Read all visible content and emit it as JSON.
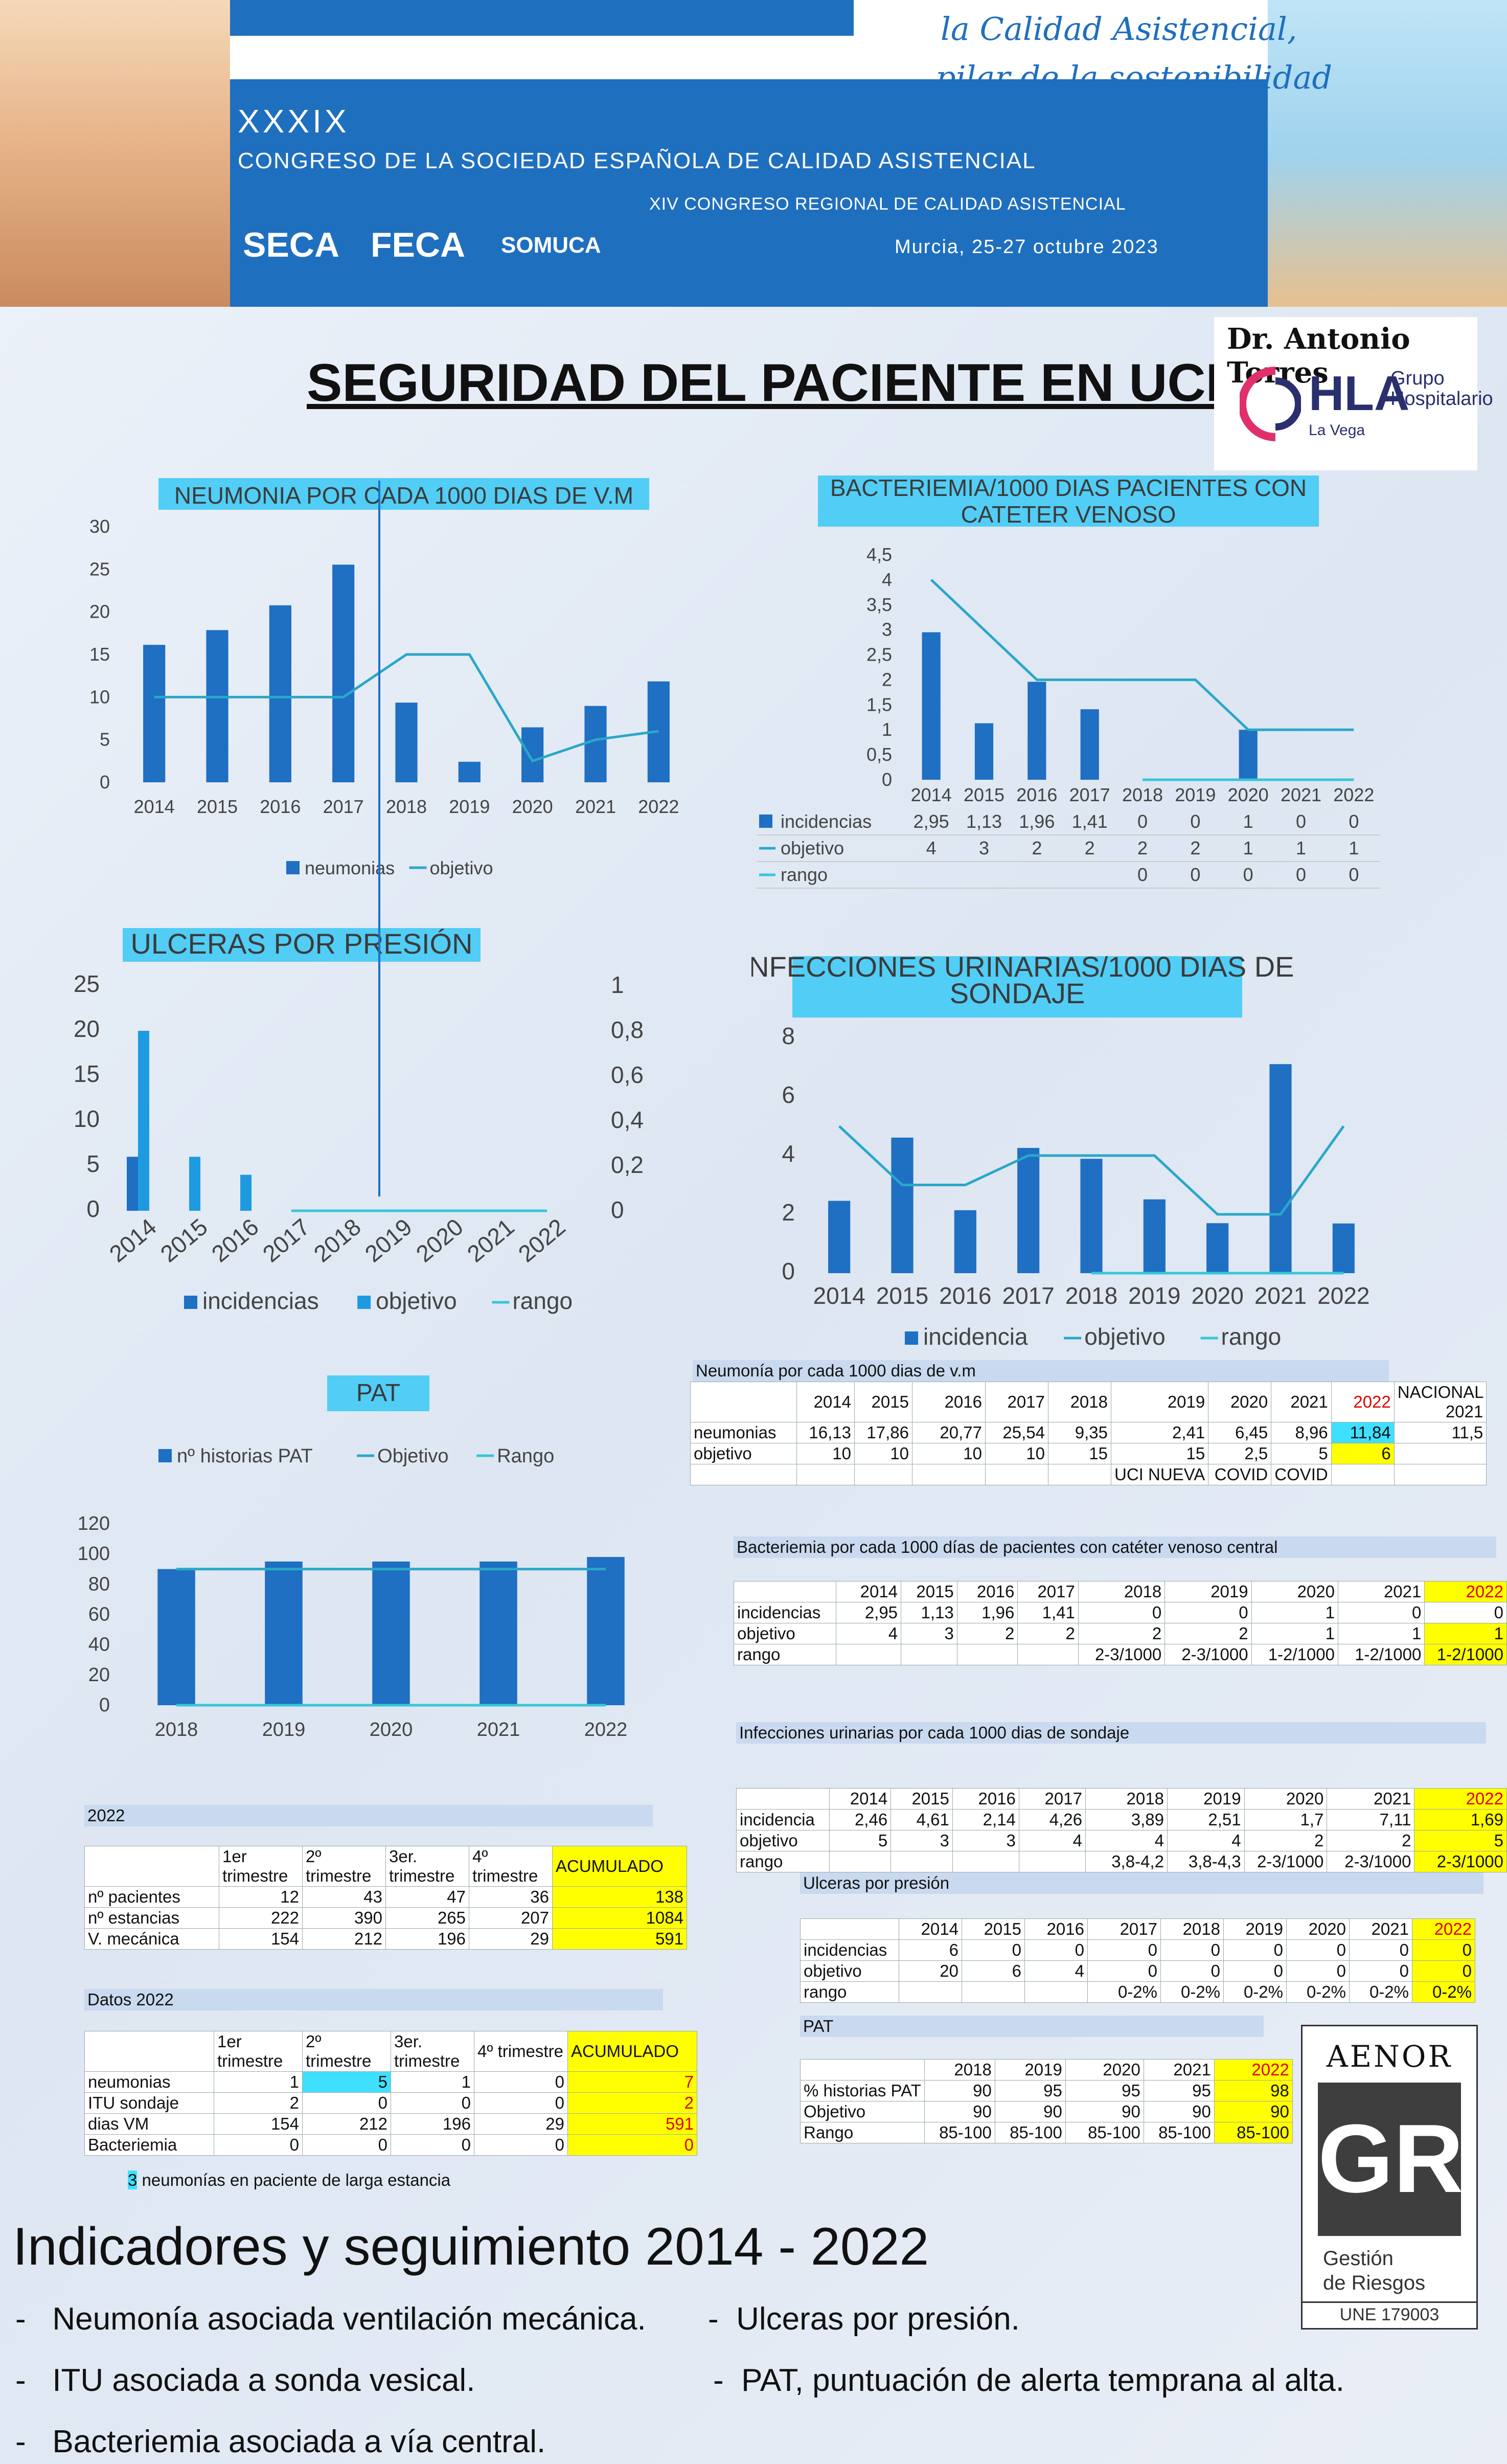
{
  "banner": {
    "number": "XXXIX",
    "congreso": "CONGRESO DE LA SOCIEDAD ESPAÑOLA DE CALIDAD ASISTENCIAL",
    "regional": "XIV CONGRESO REGIONAL DE CALIDAD ASISTENCIAL",
    "place_date": "Murcia, 25-27 octubre 2023",
    "tagline_1": "la Calidad Asistencial,",
    "tagline_2": "pilar de la sostenibilidad",
    "logos": [
      "SECA",
      "FECA",
      "SOMUCA"
    ]
  },
  "title": "SEGURIDAD DEL PACIENTE EN UCI",
  "brand": {
    "doctor": "Dr. Antonio Torres",
    "hla": "HLA",
    "grupo": "Grupo Hospitalario",
    "sub": "La Vega"
  },
  "chart_data": [
    {
      "id": "neumonia",
      "type": "bar",
      "title": "NEUMONIA POR CADA 1000 DIAS DE V.M",
      "categories": [
        "2014",
        "2015",
        "2016",
        "2017",
        "2018",
        "2019",
        "2020",
        "2021",
        "2022"
      ],
      "series": [
        {
          "name": "neumonias",
          "kind": "bar",
          "values": [
            16.13,
            17.86,
            20.77,
            25.54,
            9.35,
            2.41,
            6.45,
            8.96,
            11.84
          ]
        },
        {
          "name": "objetivo",
          "kind": "line",
          "values": [
            10,
            10,
            10,
            10,
            15,
            15,
            2.5,
            5,
            6
          ]
        }
      ],
      "yticks": [
        "0",
        "5",
        "10",
        "15",
        "20",
        "25",
        "30"
      ],
      "ylim": [
        0,
        30
      ],
      "legend": "bottom"
    },
    {
      "id": "bacteriemia",
      "type": "bar",
      "title": "BACTERIEMIA/1000 DIAS PACIENTES CON CATETER VENOSO",
      "categories": [
        "2014",
        "2015",
        "2016",
        "2017",
        "2018",
        "2019",
        "2020",
        "2021",
        "2022"
      ],
      "series": [
        {
          "name": "incidencias",
          "kind": "bar",
          "values": [
            2.95,
            1.13,
            1.96,
            1.41,
            0,
            0,
            1,
            0,
            0
          ],
          "labels": [
            "2,95",
            "1,13",
            "1,96",
            "1,41",
            "0",
            "0",
            "1",
            "0",
            "0"
          ]
        },
        {
          "name": "objetivo",
          "kind": "line",
          "values": [
            4,
            3,
            2,
            2,
            2,
            2,
            1,
            1,
            1
          ],
          "labels": [
            "4",
            "3",
            "2",
            "2",
            "2",
            "2",
            "1",
            "1",
            "1"
          ]
        },
        {
          "name": "rango",
          "kind": "line",
          "values": [
            null,
            null,
            null,
            null,
            0,
            0,
            0,
            0,
            0
          ],
          "labels": [
            "",
            "",
            "",
            "",
            "0",
            "0",
            "0",
            "0",
            "0"
          ]
        }
      ],
      "yticks": [
        "0",
        "0,5",
        "1",
        "1,5",
        "2",
        "2,5",
        "3",
        "3,5",
        "4",
        "4,5"
      ],
      "ylim": [
        0,
        4.5
      ],
      "legend": "data-table"
    },
    {
      "id": "ulceras",
      "type": "bar",
      "title": "ULCERAS POR PRESIÓN",
      "categories": [
        "2014",
        "2015",
        "2016",
        "2017",
        "2018",
        "2019",
        "2020",
        "2021",
        "2022"
      ],
      "series": [
        {
          "name": "incidencias",
          "kind": "bar",
          "values": [
            6,
            0,
            0,
            0,
            0,
            0,
            0,
            0,
            0
          ]
        },
        {
          "name": "objetivo",
          "kind": "bar",
          "values": [
            20,
            6,
            4,
            0,
            0,
            0,
            0,
            0,
            0
          ]
        },
        {
          "name": "rango",
          "kind": "line",
          "axis": "right",
          "values": [
            null,
            null,
            null,
            0,
            0,
            0,
            0,
            0,
            0
          ]
        }
      ],
      "yticks": [
        "0",
        "5",
        "10",
        "15",
        "20",
        "25"
      ],
      "ylim": [
        0,
        25
      ],
      "y2ticks": [
        "0",
        "0,2",
        "0,4",
        "0,6",
        "0,8",
        "1"
      ],
      "y2lim": [
        0,
        1
      ],
      "legend": "bottom"
    },
    {
      "id": "itu",
      "type": "bar",
      "title": "INFECCIONES URINARIAS/1000 DIAS DE SONDAJE",
      "categories": [
        "2014",
        "2015",
        "2016",
        "2017",
        "2018",
        "2019",
        "2020",
        "2021",
        "2022"
      ],
      "series": [
        {
          "name": "incidencia",
          "kind": "bar",
          "values": [
            2.46,
            4.61,
            2.14,
            4.26,
            3.89,
            2.51,
            1.7,
            7.11,
            1.69
          ]
        },
        {
          "name": "objetivo",
          "kind": "line",
          "values": [
            5,
            3,
            3,
            4,
            4,
            4,
            2,
            2,
            5
          ]
        },
        {
          "name": "rango",
          "kind": "line",
          "values": [
            null,
            null,
            null,
            null,
            0,
            0,
            0,
            0,
            0
          ]
        }
      ],
      "yticks": [
        "0",
        "2",
        "4",
        "6",
        "8"
      ],
      "ylim": [
        0,
        8
      ],
      "legend": "bottom"
    },
    {
      "id": "pat",
      "type": "bar",
      "title": "PAT",
      "categories": [
        "2018",
        "2019",
        "2020",
        "2021",
        "2022"
      ],
      "series": [
        {
          "name": "nº historias PAT",
          "kind": "bar",
          "values": [
            90,
            95,
            95,
            95,
            98
          ]
        },
        {
          "name": "Objetivo",
          "kind": "line",
          "values": [
            90,
            90,
            90,
            90,
            90
          ]
        },
        {
          "name": "Rango",
          "kind": "line",
          "values": [
            0,
            0,
            0,
            0,
            0
          ]
        }
      ],
      "yticks": [
        "0",
        "20",
        "40",
        "60",
        "80",
        "100",
        "120"
      ],
      "ylim": [
        0,
        120
      ],
      "legend": "top"
    }
  ],
  "tables": {
    "neumonia": {
      "caption": "Neumonía por cada 1000 dias de v.m",
      "header": [
        "",
        "2014",
        "2015",
        "2016",
        "2017",
        "2018",
        "2019",
        "2020",
        "2021",
        "2022",
        "NACIONAL 2021"
      ],
      "rows": [
        [
          "neumonias",
          "16,13",
          "17,86",
          "20,77",
          "25,54",
          "9,35",
          "2,41",
          "6,45",
          "8,96",
          "11,84",
          "11,5"
        ],
        [
          "objetivo",
          "10",
          "10",
          "10",
          "10",
          "15",
          "15",
          "2,5",
          "5",
          "6",
          ""
        ],
        [
          "",
          "",
          "",
          "",
          "",
          "",
          "UCI NUEVA",
          "COVID",
          "COVID",
          "",
          ""
        ]
      ]
    },
    "bacteriemia": {
      "caption": "Bacteriemia por cada 1000 días de pacientes con catéter venoso central",
      "header": [
        "",
        "2014",
        "2015",
        "2016",
        "2017",
        "2018",
        "2019",
        "2020",
        "2021",
        "2022"
      ],
      "rows": [
        [
          "incidencias",
          "2,95",
          "1,13",
          "1,96",
          "1,41",
          "0",
          "0",
          "1",
          "0",
          "0"
        ],
        [
          "objetivo",
          "4",
          "3",
          "2",
          "2",
          "2",
          "2",
          "1",
          "1",
          "1"
        ],
        [
          "rango",
          "",
          "",
          "",
          "",
          "2-3/1000",
          "2-3/1000",
          "1-2/1000",
          "1-2/1000",
          "1-2/1000"
        ]
      ]
    },
    "itu": {
      "caption": "Infecciones urinarias por cada 1000 dias de sondaje",
      "header": [
        "",
        "2014",
        "2015",
        "2016",
        "2017",
        "2018",
        "2019",
        "2020",
        "2021",
        "2022"
      ],
      "rows": [
        [
          "incidencia",
          "2,46",
          "4,61",
          "2,14",
          "4,26",
          "3,89",
          "2,51",
          "1,7",
          "7,11",
          "1,69"
        ],
        [
          "objetivo",
          "5",
          "3",
          "3",
          "4",
          "4",
          "4",
          "2",
          "2",
          "5"
        ],
        [
          "rango",
          "",
          "",
          "",
          "",
          "3,8-4,2",
          "3,8-4,3",
          "2-3/1000",
          "2-3/1000",
          "2-3/1000"
        ]
      ]
    },
    "ulceras": {
      "caption": "Ulceras por presión",
      "header": [
        "",
        "2014",
        "2015",
        "2016",
        "2017",
        "2018",
        "2019",
        "2020",
        "2021",
        "2022"
      ],
      "rows": [
        [
          "incidencias",
          "6",
          "0",
          "0",
          "0",
          "0",
          "0",
          "0",
          "0",
          "0"
        ],
        [
          "objetivo",
          "20",
          "6",
          "4",
          "0",
          "0",
          "0",
          "0",
          "0",
          "0"
        ],
        [
          "rango",
          "",
          "",
          "",
          "0-2%",
          "0-2%",
          "0-2%",
          "0-2%",
          "0-2%",
          "0-2%"
        ]
      ]
    },
    "pat": {
      "caption": "PAT",
      "header": [
        "",
        "2018",
        "2019",
        "2020",
        "2021",
        "2022"
      ],
      "rows": [
        [
          "% historias PAT",
          "90",
          "95",
          "95",
          "95",
          "98"
        ],
        [
          "Objetivo",
          "90",
          "90",
          "90",
          "90",
          "90"
        ],
        [
          "Rango",
          "85-100",
          "85-100",
          "85-100",
          "85-100",
          "85-100"
        ]
      ]
    },
    "vm2022": {
      "caption": "2022",
      "header": [
        "",
        "1er trimestre",
        "2º trimestre",
        "3er. trimestre",
        "4º trimestre",
        "ACUMULADO"
      ],
      "rows": [
        [
          "nº pacientes",
          "12",
          "43",
          "47",
          "36",
          "138"
        ],
        [
          "nº estancias",
          "222",
          "390",
          "265",
          "207",
          "1084"
        ],
        [
          "V. mecánica",
          "154",
          "212",
          "196",
          "29",
          "591"
        ]
      ]
    },
    "datos2022": {
      "caption": "Datos 2022",
      "header": [
        "",
        "1er trimestre",
        "2º trimestre",
        "3er. trimestre",
        "4º trimestre",
        "ACUMULADO"
      ],
      "rows": [
        [
          "neumonias",
          "1",
          "5",
          "1",
          "0",
          "7"
        ],
        [
          "ITU sondaje",
          "2",
          "0",
          "0",
          "0",
          "2"
        ],
        [
          "dias VM",
          "154",
          "212",
          "196",
          "29",
          "591"
        ],
        [
          "Bacteriemia",
          "0",
          "0",
          "0",
          "0",
          "0"
        ]
      ],
      "note_num": "3",
      "note": "neumonías en paciente de larga estancia"
    }
  },
  "footer": {
    "heading": "Indicadores y seguimiento  2014 - 2022",
    "bullets_left": [
      "Neumonía asociada ventilación mecánica.",
      "ITU asociada a sonda vesical.",
      "Bacteriemia asociada a vía central."
    ],
    "bullets_right": [
      "Ulceras por presión.",
      "PAT,  puntuación de alerta temprana al alta."
    ]
  },
  "aenor": {
    "name": "AENOR",
    "mark": "GR",
    "line1": "Gestión",
    "line2": "de Riesgos",
    "code": "UNE 179003"
  },
  "colors": {
    "bar": "#1f6fc3",
    "bar2": "#1e9be0",
    "line": "#2aa7c9",
    "rango": "#35c6d9",
    "title_bg": "#52cdf5",
    "highlight": "#ffff00"
  }
}
